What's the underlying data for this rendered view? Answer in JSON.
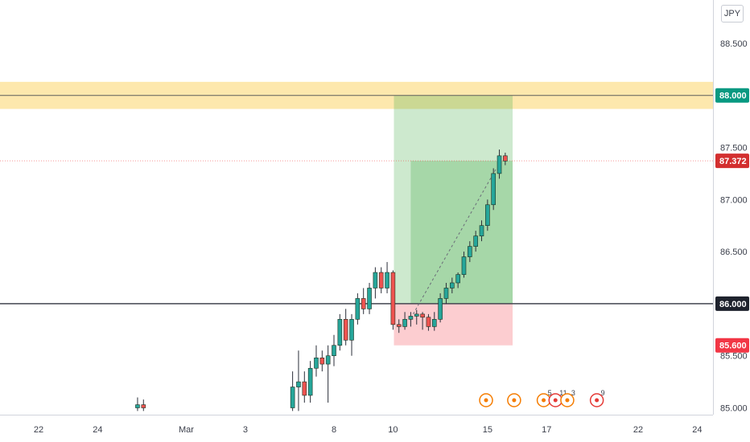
{
  "axis": {
    "currency": "JPY",
    "price_ticks": [
      "88.500",
      "87.500",
      "87.000",
      "86.500",
      "85.500",
      "85.000"
    ],
    "date_ticks": [
      {
        "label": "22",
        "d": 0
      },
      {
        "label": "24",
        "d": 2
      },
      {
        "label": "Mar",
        "d": 5
      },
      {
        "label": "3",
        "d": 7
      },
      {
        "label": "8",
        "d": 10
      },
      {
        "label": "10",
        "d": 12
      },
      {
        "label": "15",
        "d": 15.2
      },
      {
        "label": "17",
        "d": 17.2
      },
      {
        "label": "22",
        "d": 20.3
      },
      {
        "label": "24",
        "d": 22.3
      }
    ]
  },
  "price_tags": [
    {
      "label": "88.000",
      "value": 88.0,
      "bg": "#089981",
      "fg": "#ffffff"
    },
    {
      "label": "87.372",
      "value": 87.372,
      "bg": "#d32f2f",
      "fg": "#ffffff"
    },
    {
      "label": "86.000",
      "value": 86.0,
      "bg": "#1e222d",
      "fg": "#ffffff"
    },
    {
      "label": "85.600",
      "value": 85.6,
      "bg": "#f23645",
      "fg": "#ffffff"
    }
  ],
  "zones": {
    "resistance_band": {
      "from": 87.87,
      "to": 88.13,
      "color": "#fbd56a",
      "line_price": 88.0
    },
    "support_line": 86.0,
    "current_price_line": 87.372,
    "long_position": {
      "d_start": 12.03,
      "d_end": 16.05,
      "entry": 86.0,
      "target": 88.0,
      "stop": 85.6,
      "active_d_start": 12.6,
      "active_top": 87.372,
      "profit_color": "#4caf50",
      "loss_color": "#f23645"
    }
  },
  "chart_data": {
    "type": "candlestick",
    "title": "",
    "xlabel": "",
    "ylabel": "",
    "currency": "JPY",
    "ylim": [
      84.95,
      88.95
    ],
    "xlim_days": [
      -0.8,
      23.2
    ],
    "up_color": "#26a69a",
    "down_color": "#ef5350",
    "candles": [
      {
        "d": 3.35,
        "o": 85.0,
        "h": 85.1,
        "l": 84.97,
        "c": 85.03
      },
      {
        "d": 3.55,
        "o": 85.03,
        "h": 85.08,
        "l": 84.97,
        "c": 85.0
      },
      {
        "d": 8.6,
        "o": 85.0,
        "h": 85.35,
        "l": 84.97,
        "c": 85.2
      },
      {
        "d": 8.8,
        "o": 85.2,
        "h": 85.55,
        "l": 84.97,
        "c": 85.25
      },
      {
        "d": 9.0,
        "o": 85.25,
        "h": 85.35,
        "l": 85.05,
        "c": 85.12
      },
      {
        "d": 9.2,
        "o": 85.12,
        "h": 85.45,
        "l": 85.05,
        "c": 85.38
      },
      {
        "d": 9.4,
        "o": 85.38,
        "h": 85.6,
        "l": 85.3,
        "c": 85.48
      },
      {
        "d": 9.6,
        "o": 85.48,
        "h": 85.55,
        "l": 85.35,
        "c": 85.42
      },
      {
        "d": 9.8,
        "o": 85.42,
        "h": 85.6,
        "l": 85.05,
        "c": 85.5
      },
      {
        "d": 10.0,
        "o": 85.5,
        "h": 85.7,
        "l": 85.4,
        "c": 85.6
      },
      {
        "d": 10.2,
        "o": 85.6,
        "h": 85.9,
        "l": 85.55,
        "c": 85.85
      },
      {
        "d": 10.4,
        "o": 85.85,
        "h": 85.95,
        "l": 85.6,
        "c": 85.65
      },
      {
        "d": 10.6,
        "o": 85.65,
        "h": 85.9,
        "l": 85.5,
        "c": 85.85
      },
      {
        "d": 10.8,
        "o": 85.85,
        "h": 86.1,
        "l": 85.8,
        "c": 86.05
      },
      {
        "d": 11.0,
        "o": 86.05,
        "h": 86.15,
        "l": 85.9,
        "c": 85.95
      },
      {
        "d": 11.2,
        "o": 85.95,
        "h": 86.2,
        "l": 85.9,
        "c": 86.15
      },
      {
        "d": 11.4,
        "o": 86.15,
        "h": 86.35,
        "l": 86.05,
        "c": 86.3
      },
      {
        "d": 11.6,
        "o": 86.3,
        "h": 86.35,
        "l": 86.1,
        "c": 86.15
      },
      {
        "d": 11.8,
        "o": 86.15,
        "h": 86.4,
        "l": 86.1,
        "c": 86.3
      },
      {
        "d": 12.0,
        "o": 86.3,
        "h": 86.32,
        "l": 85.75,
        "c": 85.8
      },
      {
        "d": 12.2,
        "o": 85.8,
        "h": 85.85,
        "l": 85.72,
        "c": 85.78
      },
      {
        "d": 12.4,
        "o": 85.78,
        "h": 85.92,
        "l": 85.75,
        "c": 85.85
      },
      {
        "d": 12.6,
        "o": 85.85,
        "h": 85.92,
        "l": 85.78,
        "c": 85.88
      },
      {
        "d": 12.8,
        "o": 85.88,
        "h": 85.94,
        "l": 85.8,
        "c": 85.9
      },
      {
        "d": 13.0,
        "o": 85.9,
        "h": 85.92,
        "l": 85.75,
        "c": 85.87
      },
      {
        "d": 13.2,
        "o": 85.87,
        "h": 85.9,
        "l": 85.74,
        "c": 85.78
      },
      {
        "d": 13.4,
        "o": 85.78,
        "h": 85.92,
        "l": 85.74,
        "c": 85.85
      },
      {
        "d": 13.6,
        "o": 85.85,
        "h": 86.1,
        "l": 85.82,
        "c": 86.05
      },
      {
        "d": 13.8,
        "o": 86.05,
        "h": 86.2,
        "l": 86.0,
        "c": 86.15
      },
      {
        "d": 14.0,
        "o": 86.15,
        "h": 86.25,
        "l": 86.1,
        "c": 86.2
      },
      {
        "d": 14.2,
        "o": 86.2,
        "h": 86.3,
        "l": 86.15,
        "c": 86.28
      },
      {
        "d": 14.4,
        "o": 86.28,
        "h": 86.5,
        "l": 86.25,
        "c": 86.45
      },
      {
        "d": 14.6,
        "o": 86.45,
        "h": 86.6,
        "l": 86.4,
        "c": 86.55
      },
      {
        "d": 14.8,
        "o": 86.55,
        "h": 86.7,
        "l": 86.5,
        "c": 86.65
      },
      {
        "d": 15.0,
        "o": 86.65,
        "h": 86.8,
        "l": 86.6,
        "c": 86.75
      },
      {
        "d": 15.2,
        "o": 86.75,
        "h": 87.0,
        "l": 86.7,
        "c": 86.95
      },
      {
        "d": 15.4,
        "o": 86.95,
        "h": 87.3,
        "l": 86.9,
        "c": 87.25
      },
      {
        "d": 15.6,
        "o": 87.25,
        "h": 87.48,
        "l": 87.2,
        "c": 87.42
      },
      {
        "d": 15.8,
        "o": 87.42,
        "h": 87.45,
        "l": 87.33,
        "c": 87.37
      }
    ],
    "projection_line": [
      {
        "d": 12.6,
        "p": 85.86
      },
      {
        "d": 15.5,
        "p": 87.3
      }
    ]
  },
  "events": [
    {
      "d": 15.15,
      "count": "",
      "color": "#f57c00"
    },
    {
      "d": 16.1,
      "count": "",
      "color": "#f57c00"
    },
    {
      "d": 17.1,
      "count": "5",
      "color": "#f57c00"
    },
    {
      "d": 17.5,
      "count": "11",
      "color": "#e53935"
    },
    {
      "d": 17.9,
      "count": "3",
      "color": "#f57c00"
    },
    {
      "d": 18.9,
      "count": "9",
      "color": "#e53935"
    }
  ]
}
